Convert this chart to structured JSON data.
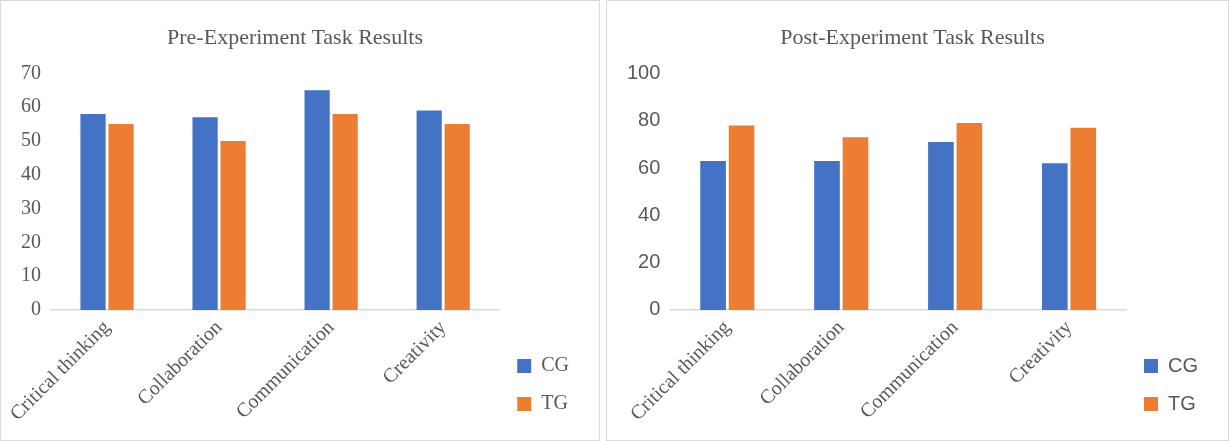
{
  "chart_data": [
    {
      "type": "bar",
      "title": "Pre-Experiment Task Results",
      "categories": [
        "Critical thinking",
        "Collaboration",
        "Communication",
        "Creativity"
      ],
      "series": [
        {
          "name": "CG",
          "color": "#4472c4",
          "values": [
            58,
            57,
            65,
            59
          ]
        },
        {
          "name": "TG",
          "color": "#ed7d31",
          "values": [
            55,
            50,
            58,
            55
          ]
        }
      ],
      "ylim": [
        0,
        70
      ],
      "yticks": [
        0,
        10,
        20,
        30,
        40,
        50,
        60,
        70
      ],
      "grid": false,
      "legend": "right"
    },
    {
      "type": "bar",
      "title": "Post-Experiment Task Results",
      "categories": [
        "Critical thinking",
        "Collaboration",
        "Communication",
        "Creativity"
      ],
      "series": [
        {
          "name": "CG",
          "color": "#4472c4",
          "values": [
            63,
            63,
            71,
            62
          ]
        },
        {
          "name": "TG",
          "color": "#ed7d31",
          "values": [
            78,
            73,
            79,
            77
          ]
        }
      ],
      "ylim": [
        0,
        100
      ],
      "yticks": [
        0,
        20,
        40,
        60,
        80,
        100
      ],
      "grid": false,
      "legend": "right"
    }
  ]
}
